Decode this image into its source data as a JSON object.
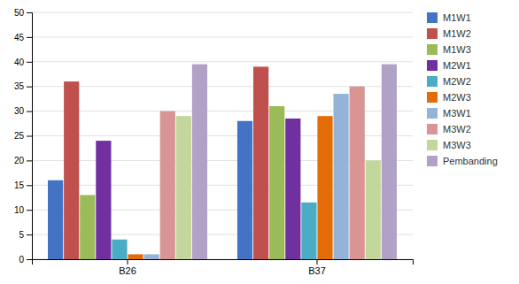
{
  "chart_data": {
    "type": "bar",
    "categories": [
      "B26",
      "B37"
    ],
    "series": [
      {
        "name": "M1W1",
        "color": "#4472C4",
        "values": [
          16,
          28
        ]
      },
      {
        "name": "M1W2",
        "color": "#C0504D",
        "values": [
          36,
          39
        ]
      },
      {
        "name": "M1W3",
        "color": "#9BBB59",
        "values": [
          13,
          31
        ]
      },
      {
        "name": "M2W1",
        "color": "#7030A0",
        "values": [
          24,
          28.5
        ]
      },
      {
        "name": "M2W2",
        "color": "#4BACC6",
        "values": [
          4,
          11.5
        ]
      },
      {
        "name": "M2W3",
        "color": "#E36C09",
        "values": [
          1,
          29
        ]
      },
      {
        "name": "M3W1",
        "color": "#95B3D7",
        "values": [
          1,
          33.5
        ]
      },
      {
        "name": "M3W2",
        "color": "#D99594",
        "values": [
          30,
          35
        ]
      },
      {
        "name": "M3W3",
        "color": "#C3D69B",
        "values": [
          29,
          20
        ]
      },
      {
        "name": "Pembanding",
        "color": "#B2A1C7",
        "values": [
          39.5,
          39.5
        ]
      }
    ],
    "ylim": [
      0,
      50
    ],
    "yticks": [
      0,
      5,
      10,
      15,
      20,
      25,
      30,
      35,
      40,
      45,
      50
    ],
    "grid": true,
    "legend": "right"
  }
}
